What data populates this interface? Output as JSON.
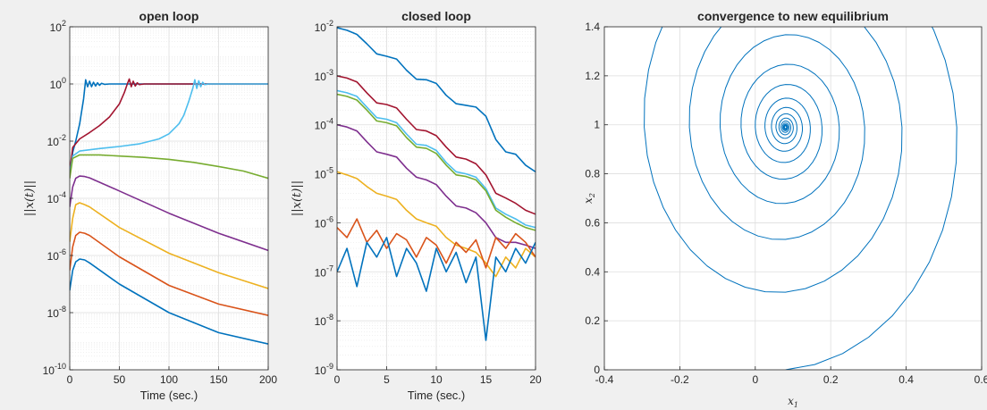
{
  "figure": {
    "background": "#f0f0f0",
    "axes_background": "#ffffff"
  },
  "chart_data": [
    {
      "id": "open-loop",
      "type": "line",
      "title": "open loop",
      "xlabel": "Time (sec.)",
      "ylabel": "||x(t)||",
      "xscale": "linear",
      "yscale": "log",
      "xlim": [
        0,
        200
      ],
      "ylim_exp": [
        -10,
        2
      ],
      "xticks": [
        0,
        50,
        100,
        150,
        200
      ],
      "xtick_labels": [
        "0",
        "50",
        "100",
        "150",
        "200"
      ],
      "yticks_exp": [
        -10,
        -8,
        -6,
        -4,
        -2,
        0,
        2
      ],
      "ytick_base": "10",
      "ytick_exponents": [
        "-10",
        "-8",
        "-6",
        "-4",
        "-2",
        "0",
        "2"
      ],
      "grid": true,
      "minor_grid": true,
      "series": [
        {
          "color": "#0072BD",
          "x": [
            0,
            3,
            6,
            10,
            14,
            16,
            18,
            20,
            22,
            24,
            26,
            28,
            30,
            32,
            35,
            40,
            50,
            100,
            150,
            200
          ],
          "y": [
            0.0006,
            0.004,
            0.01,
            0.04,
            0.3,
            1.4,
            0.8,
            1.25,
            0.8,
            1.15,
            0.85,
            1.1,
            0.9,
            1.05,
            0.97,
            1.0,
            1.0,
            1.0,
            1.0,
            1.0
          ]
        },
        {
          "color": "#A2142F",
          "x": [
            0,
            3,
            10,
            20,
            30,
            40,
            50,
            55,
            58,
            60,
            62,
            64,
            66,
            68,
            70,
            75,
            80,
            100,
            150,
            200
          ],
          "y": [
            0.0008,
            0.006,
            0.012,
            0.02,
            0.035,
            0.07,
            0.2,
            0.5,
            1.0,
            1.5,
            0.8,
            1.25,
            0.85,
            1.1,
            0.95,
            1.0,
            1.0,
            1.0,
            1.0,
            1.0
          ]
        },
        {
          "color": "#4DBEEE",
          "x": [
            0,
            3,
            10,
            30,
            50,
            70,
            90,
            100,
            110,
            115,
            120,
            124,
            126,
            128,
            130,
            132,
            134,
            136,
            140,
            150,
            200
          ],
          "y": [
            0.0007,
            0.003,
            0.0045,
            0.0055,
            0.0065,
            0.008,
            0.012,
            0.018,
            0.04,
            0.08,
            0.25,
            0.7,
            1.4,
            0.7,
            1.3,
            0.8,
            1.15,
            0.95,
            1.0,
            1.0,
            1.0
          ]
        },
        {
          "color": "#77AC30",
          "x": [
            0,
            3,
            10,
            30,
            50,
            75,
            100,
            125,
            150,
            175,
            200
          ],
          "y": [
            0.0005,
            0.0025,
            0.0033,
            0.0033,
            0.003,
            0.0027,
            0.0023,
            0.0018,
            0.0013,
            0.0009,
            0.0005
          ]
        },
        {
          "color": "#7E2F8E",
          "x": [
            0,
            3,
            6,
            10,
            15,
            20,
            50,
            100,
            150,
            200
          ],
          "y": [
            5e-05,
            0.00025,
            0.0005,
            0.0006,
            0.00058,
            0.00052,
            0.00018,
            3e-05,
            6e-06,
            1.5e-06
          ]
        },
        {
          "color": "#EDB120",
          "x": [
            0,
            3,
            6,
            10,
            15,
            20,
            50,
            100,
            150,
            200
          ],
          "y": [
            3e-06,
            2e-05,
            6e-05,
            7e-05,
            6e-05,
            5e-05,
            9.5e-06,
            1.2e-06,
            2.5e-07,
            7e-08
          ]
        },
        {
          "color": "#D95319",
          "x": [
            0,
            3,
            6,
            10,
            15,
            20,
            50,
            100,
            150,
            200
          ],
          "y": [
            3e-07,
            2e-06,
            5e-06,
            6.5e-06,
            6e-06,
            5e-06,
            9e-07,
            9e-08,
            2e-08,
            8e-09
          ]
        },
        {
          "color": "#0072BD",
          "x": [
            0,
            3,
            6,
            10,
            15,
            20,
            50,
            100,
            150,
            200
          ],
          "y": [
            6e-08,
            3e-07,
            6e-07,
            7.5e-07,
            7e-07,
            5.5e-07,
            1e-07,
            1e-08,
            2e-09,
            8e-10
          ]
        }
      ]
    },
    {
      "id": "closed-loop",
      "type": "line",
      "title": "closed loop",
      "xlabel": "Time (sec.)",
      "ylabel": "||x(t)||",
      "xscale": "linear",
      "yscale": "log",
      "xlim": [
        0,
        20
      ],
      "ylim_exp": [
        -9,
        -2
      ],
      "xticks": [
        0,
        5,
        10,
        15,
        20
      ],
      "xtick_labels": [
        "0",
        "5",
        "10",
        "15",
        "20"
      ],
      "yticks_exp": [
        -9,
        -8,
        -7,
        -6,
        -5,
        -4,
        -3,
        -2
      ],
      "ytick_base": "10",
      "ytick_exponents": [
        "-9",
        "-8",
        "-7",
        "-6",
        "-5",
        "-4",
        "-3",
        "-2"
      ],
      "grid": true,
      "minor_grid": true,
      "series": [
        {
          "color": "#0072BD",
          "x": [
            0,
            1,
            2,
            3,
            4,
            5,
            6,
            7,
            8,
            9,
            10,
            11,
            12,
            13,
            14,
            15,
            16,
            17,
            18,
            19,
            20
          ],
          "y": [
            0.0096,
            0.0085,
            0.007,
            0.0045,
            0.0028,
            0.0025,
            0.0022,
            0.0013,
            0.00085,
            0.00083,
            0.0007,
            0.0004,
            0.00027,
            0.00025,
            0.00023,
            0.00015,
            5e-05,
            2.8e-05,
            2.5e-05,
            1.5e-05,
            1.1e-05
          ]
        },
        {
          "color": "#A2142F",
          "x": [
            0,
            1,
            2,
            3,
            4,
            5,
            6,
            7,
            8,
            9,
            10,
            11,
            12,
            13,
            14,
            15,
            16,
            17,
            18,
            19,
            20
          ],
          "y": [
            0.001,
            0.0009,
            0.00075,
            0.00045,
            0.00028,
            0.00026,
            0.00022,
            0.00013,
            8e-05,
            7.5e-05,
            6e-05,
            3.5e-05,
            2.2e-05,
            2e-05,
            1.6e-05,
            9.5e-06,
            4e-06,
            3.2e-06,
            2.5e-06,
            1.8e-06,
            1.5e-06
          ]
        },
        {
          "color": "#4DBEEE",
          "x": [
            0,
            1,
            2,
            3,
            4,
            5,
            6,
            7,
            8,
            9,
            10,
            11,
            12,
            13,
            14,
            15,
            16,
            17,
            18,
            19,
            20
          ],
          "y": [
            0.0005,
            0.00045,
            0.00038,
            0.00023,
            0.00014,
            0.00013,
            0.00011,
            6.5e-05,
            4e-05,
            3.8e-05,
            3e-05,
            1.7e-05,
            1.1e-05,
            1e-05,
            8.5e-06,
            5e-06,
            2e-06,
            1.5e-06,
            1.2e-06,
            9e-07,
            8e-07
          ]
        },
        {
          "color": "#77AC30",
          "x": [
            0,
            1,
            2,
            3,
            4,
            5,
            6,
            7,
            8,
            9,
            10,
            11,
            12,
            13,
            14,
            15,
            16,
            17,
            18,
            19,
            20
          ],
          "y": [
            0.00042,
            0.00038,
            0.00032,
            0.0002,
            0.00012,
            0.00011,
            9.5e-05,
            5.5e-05,
            3.5e-05,
            3.3e-05,
            2.6e-05,
            1.5e-05,
            9.5e-06,
            8.8e-06,
            7.5e-06,
            4.5e-06,
            1.8e-06,
            1.3e-06,
            1e-06,
            8e-07,
            7e-07
          ]
        },
        {
          "color": "#7E2F8E",
          "x": [
            0,
            1,
            2,
            3,
            4,
            5,
            6,
            7,
            8,
            9,
            10,
            11,
            12,
            13,
            14,
            15,
            16,
            17,
            18,
            19,
            20
          ],
          "y": [
            0.0001,
            9e-05,
            7.5e-05,
            4.5e-05,
            2.8e-05,
            2.5e-05,
            2.2e-05,
            1.3e-05,
            8.5e-06,
            7.5e-06,
            6e-06,
            3.5e-06,
            2.2e-06,
            2e-06,
            1.6e-06,
            1e-06,
            5e-07,
            4e-07,
            4e-07,
            3.5e-07,
            3e-07
          ]
        },
        {
          "color": "#EDB120",
          "x": [
            0,
            1,
            2,
            3,
            4,
            5,
            6,
            7,
            8,
            9,
            10,
            11,
            12,
            13,
            14,
            15,
            16,
            17,
            18,
            19,
            20
          ],
          "y": [
            1.1e-05,
            9.5e-06,
            8e-06,
            5.5e-06,
            4e-06,
            3.5e-06,
            3e-06,
            1.8e-06,
            1.2e-06,
            1e-06,
            8.5e-07,
            5e-07,
            3.5e-07,
            3e-07,
            2.5e-07,
            1.5e-07,
            8e-08,
            2e-07,
            1.2e-07,
            3e-07,
            2e-07
          ]
        },
        {
          "color": "#D95319",
          "x": [
            0,
            1,
            2,
            3,
            4,
            5,
            6,
            7,
            8,
            9,
            10,
            11,
            12,
            13,
            14,
            15,
            16,
            17,
            18,
            19,
            20
          ],
          "y": [
            8e-07,
            5e-07,
            1.2e-06,
            4e-07,
            7e-07,
            3e-07,
            6e-07,
            4.5e-07,
            2e-07,
            5e-07,
            3.5e-07,
            1.5e-07,
            4e-07,
            2.5e-07,
            4.5e-07,
            1.2e-07,
            5e-07,
            3e-07,
            6e-07,
            4e-07,
            2e-07
          ]
        },
        {
          "color": "#0072BD",
          "x": [
            0,
            1,
            2,
            3,
            4,
            5,
            6,
            7,
            8,
            9,
            10,
            11,
            12,
            13,
            14,
            15,
            16,
            17,
            18,
            19,
            20
          ],
          "y": [
            1e-07,
            3e-07,
            5e-08,
            4e-07,
            2e-07,
            5e-07,
            8e-08,
            3e-07,
            1.5e-07,
            4e-08,
            3e-07,
            1e-07,
            2.5e-07,
            6e-08,
            2e-07,
            4e-09,
            2e-07,
            1e-07,
            3e-07,
            1.5e-07,
            4e-07
          ]
        }
      ]
    },
    {
      "id": "phase-plane",
      "type": "line",
      "title": "convergence to new equilibrium",
      "xlabel": "x",
      "xlabel_sub": "1",
      "ylabel": "x",
      "ylabel_sub": "2",
      "xscale": "linear",
      "yscale": "linear",
      "xlim": [
        -0.4,
        0.6
      ],
      "ylim": [
        0,
        1.4
      ],
      "xticks": [
        -0.4,
        -0.2,
        0,
        0.2,
        0.4,
        0.6
      ],
      "xtick_labels": [
        "-0.4",
        "-0.2",
        "0",
        "0.2",
        "0.4",
        "0.6"
      ],
      "yticks": [
        0,
        0.2,
        0.4,
        0.6,
        0.8,
        1,
        1.2,
        1.4
      ],
      "ytick_labels": [
        "0",
        "0.2",
        "0.4",
        "0.6",
        "0.8",
        "1",
        "1.2",
        "1.4"
      ],
      "grid": true,
      "series": [
        {
          "color": "#0072BD",
          "spiral": {
            "start": [
              0,
              0
            ],
            "center": [
              0.08,
              0.99
            ],
            "initial_rx": 0.5,
            "initial_ry": 0.99,
            "start_angle_deg": 270,
            "turns": 14,
            "decay_per_turn": 0.68,
            "ccw": true
          }
        }
      ]
    }
  ]
}
